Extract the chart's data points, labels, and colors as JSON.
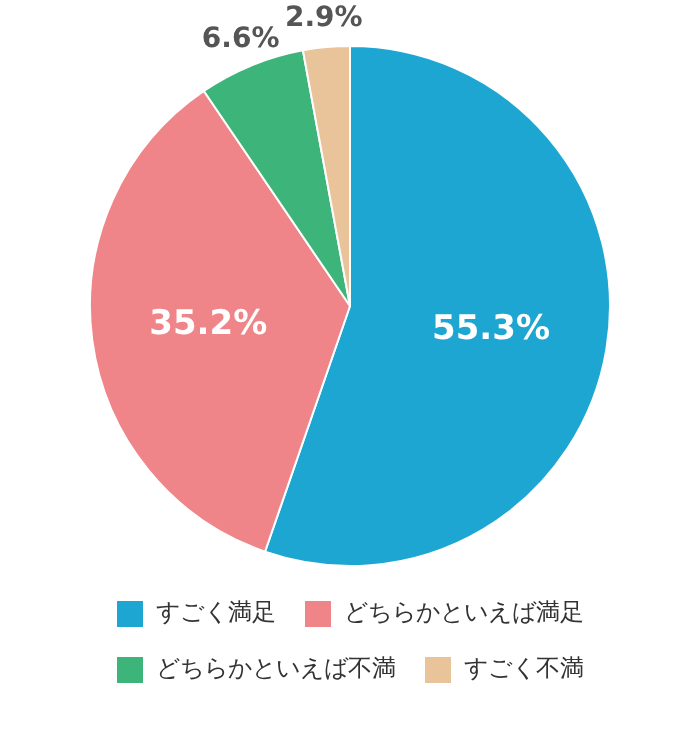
{
  "chart_data": {
    "type": "pie",
    "categories": [
      "すごく満足",
      "どちらかといえば満足",
      "どちらかといえば不満",
      "すごく不満"
    ],
    "values": [
      55.3,
      35.2,
      6.6,
      2.9
    ],
    "colors": [
      "#1ea6d2",
      "#ef8589",
      "#3db57a",
      "#e9c39a"
    ],
    "value_labels": [
      "55.3%",
      "35.2%",
      "6.6%",
      "2.9%"
    ],
    "legend": "bottom"
  }
}
